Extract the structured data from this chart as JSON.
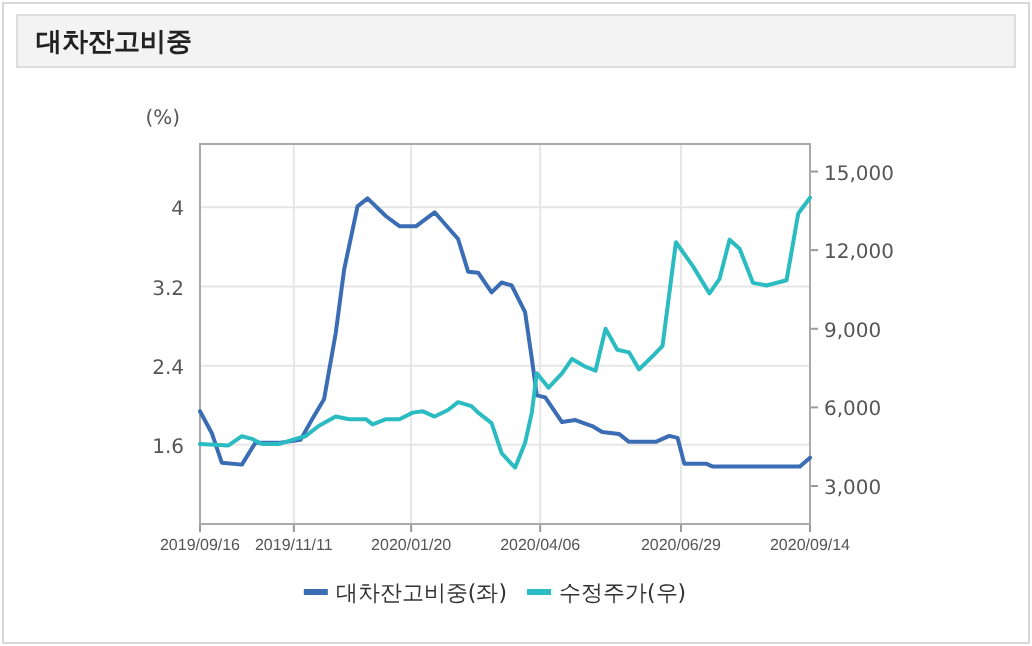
{
  "chart_data": {
    "type": "line",
    "title": "대차잔고비중",
    "ylabel": "(%)",
    "xlim": [
      "2019-09-16",
      "2020-09-14"
    ],
    "xticks": [
      {
        "value": "2019-09-16",
        "label": "2019/09/16"
      },
      {
        "value": "2019-11-11",
        "label": "2019/11/11"
      },
      {
        "value": "2020-01-20",
        "label": "2020/01/20"
      },
      {
        "value": "2020-04-06",
        "label": "2020/04/06"
      },
      {
        "value": "2020-06-29",
        "label": "2020/06/29"
      },
      {
        "value": "2020-09-14",
        "label": "2020/09/14"
      }
    ],
    "ylim": [
      0.8,
      4.64
    ],
    "yticks": [
      1.6,
      2.4,
      3.2,
      4
    ],
    "y2lim": [
      1550,
      16050
    ],
    "y2ticks": [
      {
        "value": 3000,
        "label": "3,000"
      },
      {
        "value": 6000,
        "label": "6,000"
      },
      {
        "value": 9000,
        "label": "9,000"
      },
      {
        "value": 12000,
        "label": "12,000"
      },
      {
        "value": 15000,
        "label": "15,000"
      }
    ],
    "grid": true,
    "legend": "bottom",
    "line_style": "solid",
    "marker": "none",
    "series": [
      {
        "name": "대차잔고비중(좌)",
        "color": "#3b6db5",
        "x": [
          "2019-09-16",
          "2019-09-23",
          "2019-09-29",
          "2019-10-11",
          "2019-10-19",
          "2019-11-02",
          "2019-11-15",
          "2019-11-22",
          "2019-11-29",
          "2019-12-06",
          "2019-12-11",
          "2019-12-19",
          "2019-12-25",
          "2020-01-05",
          "2020-01-13",
          "2020-01-23",
          "2020-02-03",
          "2020-02-17",
          "2020-02-23",
          "2020-02-29",
          "2020-03-08",
          "2020-03-14",
          "2020-03-20",
          "2020-03-28",
          "2020-04-01",
          "2020-04-04",
          "2020-04-09",
          "2020-04-19",
          "2020-04-27",
          "2020-05-07",
          "2020-05-13",
          "2020-05-23",
          "2020-05-29",
          "2020-06-14",
          "2020-06-22",
          "2020-06-27",
          "2020-07-01",
          "2020-07-14",
          "2020-07-18",
          "2020-09-08",
          "2020-09-14"
        ],
        "values": [
          1.94,
          1.72,
          1.42,
          1.4,
          1.62,
          1.62,
          1.65,
          1.86,
          2.06,
          2.73,
          3.37,
          4.01,
          4.09,
          3.91,
          3.81,
          3.81,
          3.95,
          3.68,
          3.35,
          3.34,
          3.14,
          3.24,
          3.21,
          2.94,
          2.47,
          2.1,
          2.08,
          1.83,
          1.85,
          1.79,
          1.73,
          1.71,
          1.63,
          1.63,
          1.69,
          1.67,
          1.41,
          1.41,
          1.38,
          1.38,
          1.47
        ]
      },
      {
        "name": "수정주가(우)",
        "color": "#2bbcc2",
        "axis": "y2",
        "x": [
          "2019-09-16",
          "2019-10-03",
          "2019-10-11",
          "2019-10-17",
          "2019-10-23",
          "2019-11-02",
          "2019-11-12",
          "2019-11-18",
          "2019-11-26",
          "2019-12-06",
          "2019-12-14",
          "2019-12-24",
          "2019-12-28",
          "2020-01-05",
          "2020-01-13",
          "2020-01-21",
          "2020-01-27",
          "2020-02-03",
          "2020-02-11",
          "2020-02-17",
          "2020-02-25",
          "2020-02-29",
          "2020-03-08",
          "2020-03-14",
          "2020-03-22",
          "2020-03-28",
          "2020-04-01",
          "2020-04-04",
          "2020-04-11",
          "2020-04-19",
          "2020-04-25",
          "2020-05-03",
          "2020-05-09",
          "2020-05-15",
          "2020-05-22",
          "2020-05-29",
          "2020-06-04",
          "2020-06-12",
          "2020-06-18",
          "2020-06-26",
          "2020-07-06",
          "2020-07-16",
          "2020-07-22",
          "2020-07-28",
          "2020-08-03",
          "2020-08-11",
          "2020-08-19",
          "2020-08-31",
          "2020-09-07",
          "2020-09-14"
        ],
        "values": [
          4600,
          4550,
          4900,
          4800,
          4600,
          4600,
          4800,
          4900,
          5300,
          5650,
          5550,
          5550,
          5350,
          5550,
          5550,
          5800,
          5850,
          5650,
          5900,
          6200,
          6050,
          5800,
          5400,
          4250,
          3700,
          4650,
          5800,
          7300,
          6750,
          7300,
          7850,
          7550,
          7400,
          9000,
          8200,
          8100,
          7450,
          7950,
          8350,
          12300,
          11400,
          10350,
          10900,
          12400,
          12050,
          10750,
          10650,
          10850,
          13400,
          14000
        ]
      }
    ]
  }
}
